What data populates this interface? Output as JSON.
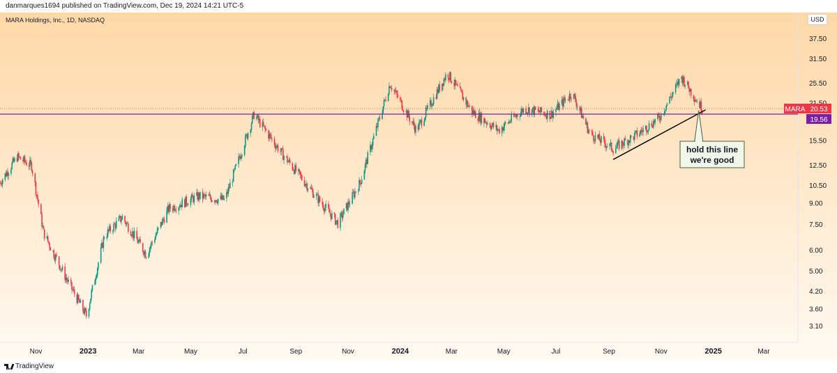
{
  "header": {
    "publisher_line": "danmarques1694 published on TradingView.com, Dec 19, 2024 14:21 UTC-5"
  },
  "symbol": {
    "info": "MARA Holdings, Inc., 1D, NASDAQ",
    "ticker_label": "MARA",
    "last_price": "20.53",
    "hline_price": "19.56",
    "currency": "USD"
  },
  "footer": {
    "brand": "TradingView",
    "logo_icon": "tradingview-logo-icon"
  },
  "colors": {
    "up": "#089981",
    "down": "#f23645",
    "hline": "#7b1fa2",
    "price_tag": "#f23645",
    "hline_tag": "#7b1fa2",
    "bg_top": "#ffd8a8",
    "bg_bottom": "#fffaf2"
  },
  "annotation": {
    "line1": "hold this line",
    "line2": "we're good"
  },
  "chart_data": {
    "type": "candlestick",
    "scale": "log",
    "ylim": [
      2.8,
      45
    ],
    "y_ticks": [
      "37.50",
      "31.50",
      "25.50",
      "21.50",
      "15.50",
      "12.50",
      "10.50",
      "9.00",
      "7.50",
      "6.00",
      "5.00",
      "4.20",
      "3.60",
      "3.10"
    ],
    "x_ticks": [
      "Nov",
      "2023",
      "Mar",
      "May",
      "Jul",
      "Sep",
      "Nov",
      "2024",
      "Mar",
      "May",
      "Jul",
      "Sep",
      "Nov",
      "2025",
      "Mar"
    ],
    "x_range": [
      "2022-09-20",
      "2025-04-10"
    ],
    "last_price": 20.53,
    "horizontal_line": 19.56,
    "trend_line": [
      [
        "2024-09-06",
        13.2
      ],
      [
        "2024-12-23",
        20.3
      ]
    ],
    "approx_closes": [
      [
        "2022-09-20",
        10.8
      ],
      [
        "2022-10-10",
        13.5
      ],
      [
        "2022-10-27",
        12.5
      ],
      [
        "2022-11-10",
        7.0
      ],
      [
        "2022-12-05",
        4.8
      ],
      [
        "2022-12-30",
        3.4
      ],
      [
        "2023-01-20",
        6.8
      ],
      [
        "2023-02-10",
        8.0
      ],
      [
        "2023-03-10",
        5.8
      ],
      [
        "2023-04-05",
        8.6
      ],
      [
        "2023-05-10",
        9.6
      ],
      [
        "2023-06-10",
        9.3
      ],
      [
        "2023-07-14",
        19.5
      ],
      [
        "2023-08-15",
        14.0
      ],
      [
        "2023-09-20",
        10.0
      ],
      [
        "2023-10-20",
        7.6
      ],
      [
        "2023-11-15",
        10.8
      ],
      [
        "2023-12-20",
        25.5
      ],
      [
        "2024-01-20",
        17.0
      ],
      [
        "2024-02-25",
        28.0
      ],
      [
        "2024-03-25",
        20.0
      ],
      [
        "2024-04-25",
        17.0
      ],
      [
        "2024-05-25",
        20.5
      ],
      [
        "2024-06-25",
        19.5
      ],
      [
        "2024-07-20",
        23.5
      ],
      [
        "2024-08-10",
        16.5
      ],
      [
        "2024-09-06",
        14.5
      ],
      [
        "2024-10-05",
        16.5
      ],
      [
        "2024-10-30",
        19.0
      ],
      [
        "2024-11-25",
        27.0
      ],
      [
        "2024-12-19",
        20.53
      ]
    ]
  }
}
